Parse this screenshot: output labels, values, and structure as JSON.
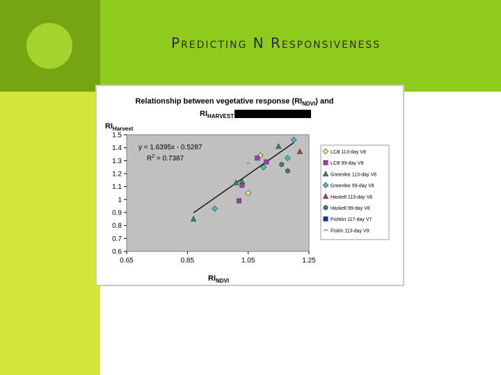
{
  "slide": {
    "title": "Predicting N Responsiveness"
  },
  "colors": {
    "left_band": "#d4e63c",
    "top_band": "#8fcb1c",
    "corner": "#76a514",
    "circle": "#a6d22e",
    "plot_bg": "#c0c0c0"
  },
  "chart_data": {
    "type": "scatter",
    "title_line1": "Relationship between vegetative response (RI",
    "title_sub1": "NDVI",
    "title_end1": ") and",
    "title_line2": "RI",
    "title_sub2": "HARVEST",
    "ylabel_main": "RI",
    "ylabel_sub": "Harvest",
    "xlabel_main": "RI",
    "xlabel_sub": "NDVI",
    "xlim": [
      0.65,
      1.25
    ],
    "ylim": [
      0.6,
      1.5
    ],
    "x_ticks": [
      0.65,
      0.85,
      1.05,
      1.25
    ],
    "x_tick_labels": [
      "0.65",
      "0.85",
      "1.05",
      "1.25"
    ],
    "y_ticks": [
      0.6,
      0.7,
      0.8,
      0.9,
      1.0,
      1.1,
      1.2,
      1.3,
      1.4,
      1.5
    ],
    "y_tick_labels": [
      "0.6",
      "0.7",
      "0.8",
      "0.9",
      "1",
      "1.1",
      "1.2",
      "1.3",
      "1.4",
      "1.5"
    ],
    "equation": "y = 1.6395x - 0.5287",
    "r2_label": "R",
    "r2_sup": "2",
    "r2_value": " = 0.7387",
    "trendline": {
      "slope": 1.6395,
      "intercept": -0.5287,
      "x_range": [
        0.87,
        1.2
      ]
    },
    "grid": false,
    "legend_position": "right",
    "series": [
      {
        "name": "LCB 113-day V8",
        "marker": "diamond",
        "color": "#e8e880",
        "x": [
          1.05,
          1.09
        ],
        "y": [
          1.05,
          1.34
        ]
      },
      {
        "name": "LCB 99-day V8",
        "marker": "square",
        "color": "#a040b0",
        "x": [
          1.02,
          1.03,
          1.08,
          1.11
        ],
        "y": [
          0.99,
          1.11,
          1.32,
          1.29
        ]
      },
      {
        "name": "Greenlee 113-day V8",
        "marker": "triangle",
        "color": "#2e8b57",
        "x": [
          0.87,
          1.01,
          1.03,
          1.15
        ],
        "y": [
          0.85,
          1.13,
          1.14,
          1.41
        ]
      },
      {
        "name": "Greenlee 99-day V8",
        "marker": "diamond",
        "color": "#40c0c0",
        "x": [
          0.94,
          1.1,
          1.18,
          1.2
        ],
        "y": [
          0.93,
          1.25,
          1.32,
          1.46
        ]
      },
      {
        "name": "Haskell 113-day V8",
        "marker": "triangle",
        "color": "#c04040",
        "x": [
          1.22
        ],
        "y": [
          1.37
        ]
      },
      {
        "name": "Haskell 99-day V8",
        "marker": "circle",
        "color": "#408060",
        "x": [
          1.16,
          1.18
        ],
        "y": [
          1.27,
          1.22
        ]
      },
      {
        "name": "Fishkin 117-day V7",
        "marker": "square",
        "color": "#1a2ab0",
        "x": [],
        "y": []
      },
      {
        "name": "Fiskin 113-day V9",
        "marker": "dash",
        "color": "#60a8e0",
        "x": [
          1.05
        ],
        "y": [
          1.28
        ]
      }
    ]
  }
}
